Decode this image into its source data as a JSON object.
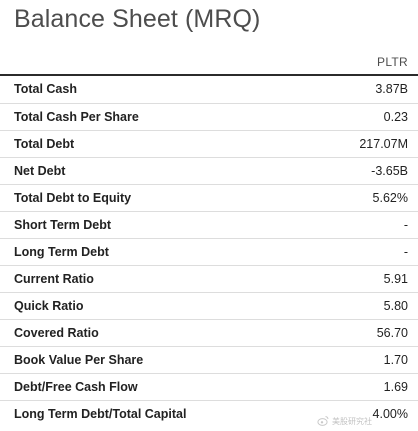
{
  "title": "Balance Sheet (MRQ)",
  "table": {
    "column_header": "PLTR",
    "rows": [
      {
        "label": "Total Cash",
        "value": "3.87B"
      },
      {
        "label": "Total Cash Per Share",
        "value": "0.23"
      },
      {
        "label": "Total Debt",
        "value": "217.07M"
      },
      {
        "label": "Net Debt",
        "value": "-3.65B"
      },
      {
        "label": "Total Debt to Equity",
        "value": "5.62%"
      },
      {
        "label": "Short Term Debt",
        "value": "-"
      },
      {
        "label": "Long Term Debt",
        "value": "-"
      },
      {
        "label": "Current Ratio",
        "value": "5.91"
      },
      {
        "label": "Quick Ratio",
        "value": "5.80"
      },
      {
        "label": "Covered Ratio",
        "value": "56.70"
      },
      {
        "label": "Book Value Per Share",
        "value": "1.70"
      },
      {
        "label": "Debt/Free Cash Flow",
        "value": "1.69"
      },
      {
        "label": "Long Term Debt/Total Capital",
        "value": "4.00%"
      }
    ]
  },
  "watermark": {
    "text": "美股研究社",
    "icon": "weibo-logo-icon"
  },
  "colors": {
    "title": "#4d4d4d",
    "header_rule": "#2b2b2b",
    "row_divider": "#dddddd"
  }
}
